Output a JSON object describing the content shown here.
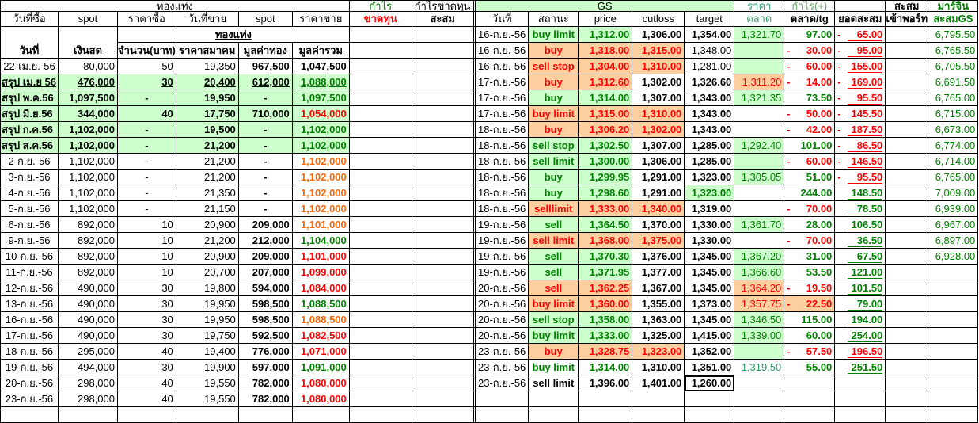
{
  "colors": {
    "green": "#008000",
    "red": "#ff0000",
    "orange": "#ff6600",
    "light_green_bg": "#ccffcc",
    "orange_bg": "#ffcc99"
  },
  "left": {
    "header": {
      "group": "ทองแท่ง",
      "profit": "กำไร",
      "profit_loss": "กำไรขาดทุน",
      "buy_date": "วันที่ซื้อ",
      "spot1": "spot",
      "buy_price": "ราคาซื้อ",
      "sell_date": "วันที่ขาย",
      "spot2": "spot",
      "sell_price": "ราคาขาย",
      "loss": "ขาดทุน",
      "cumulative": "สะสม",
      "date": "วันที่",
      "cash": "เงินสด",
      "gold_bar": "ทองแท่ง",
      "qty": "จำนวน(บาท)",
      "assoc_price": "ราคาสมาคม",
      "gold_value": "มูลค่าทอง",
      "total_value": "มูลค่ารวม"
    },
    "rows": [
      {
        "date": "22-เม.ย.-56",
        "cash": "80,000",
        "qty": "50",
        "price": "19,350",
        "gold": "967,500",
        "total": "1,047,500",
        "tc": "k",
        "sum": false
      },
      {
        "date": "สรุป เม.ย 56",
        "cash": "476,000",
        "qty": "30",
        "price": "20,400",
        "gold": "612,000",
        "total": "1,088,000",
        "tc": "g",
        "sum": true,
        "ul": true
      },
      {
        "date": "สรุป พ.ค.56",
        "cash": "1,097,500",
        "qty": "-",
        "price": "19,950",
        "gold": "-",
        "total": "1,097,500",
        "tc": "g",
        "sum": true
      },
      {
        "date": "สรุป มิ.ย.56",
        "cash": "344,000",
        "qty": "40",
        "price": "17,750",
        "gold": "710,000",
        "total": "1,054,000",
        "tc": "r",
        "sum": true
      },
      {
        "date": "สรุป ก.ค.56",
        "cash": "1,102,000",
        "qty": "-",
        "price": "19,500",
        "gold": "-",
        "total": "1,102,000",
        "tc": "g",
        "sum": true
      },
      {
        "date": "สรุป ส.ค.56",
        "cash": "1,102,000",
        "qty": "-",
        "price": "21,200",
        "gold": "-",
        "total": "1,102,000",
        "tc": "g",
        "sum": true
      },
      {
        "date": "2-ก.ย.-56",
        "cash": "1,102,000",
        "qty": "-",
        "price": "21,200",
        "gold": "-",
        "total": "1,102,000",
        "tc": "o"
      },
      {
        "date": "3-ก.ย.-56",
        "cash": "1,102,000",
        "qty": "-",
        "price": "21,200",
        "gold": "-",
        "total": "1,102,000",
        "tc": "o"
      },
      {
        "date": "4-ก.ย.-56",
        "cash": "1,102,000",
        "qty": "-",
        "price": "21,350",
        "gold": "-",
        "total": "1,102,000",
        "tc": "o"
      },
      {
        "date": "5-ก.ย.-56",
        "cash": "1,102,000",
        "qty": "-",
        "price": "21,150",
        "gold": "-",
        "total": "1,102,000",
        "tc": "o"
      },
      {
        "date": "6-ก.ย.-56",
        "cash": "892,000",
        "qty": "10",
        "price": "20,900",
        "gold": "209,000",
        "total": "1,101,000",
        "tc": "o"
      },
      {
        "date": "9-ก.ย.-56",
        "cash": "892,000",
        "qty": "10",
        "price": "21,200",
        "gold": "212,000",
        "total": "1,104,000",
        "tc": "g"
      },
      {
        "date": "10-ก.ย.-56",
        "cash": "892,000",
        "qty": "10",
        "price": "20,900",
        "gold": "209,000",
        "total": "1,101,000",
        "tc": "r"
      },
      {
        "date": "11-ก.ย.-56",
        "cash": "892,000",
        "qty": "10",
        "price": "20,700",
        "gold": "207,000",
        "total": "1,099,000",
        "tc": "r"
      },
      {
        "date": "12-ก.ย.-56",
        "cash": "490,000",
        "qty": "30",
        "price": "19,800",
        "gold": "594,000",
        "total": "1,084,000",
        "tc": "r"
      },
      {
        "date": "13-ก.ย.-56",
        "cash": "490,000",
        "qty": "30",
        "price": "19,950",
        "gold": "598,500",
        "total": "1,088,500",
        "tc": "g"
      },
      {
        "date": "16-ก.ย.-56",
        "cash": "490,000",
        "qty": "30",
        "price": "19,950",
        "gold": "598,500",
        "total": "1,088,500",
        "tc": "o"
      },
      {
        "date": "17-ก.ย.-56",
        "cash": "490,000",
        "qty": "30",
        "price": "19,750",
        "gold": "592,500",
        "total": "1,082,500",
        "tc": "r"
      },
      {
        "date": "18-ก.ย.-56",
        "cash": "295,000",
        "qty": "40",
        "price": "19,400",
        "gold": "776,000",
        "total": "1,071,000",
        "tc": "r"
      },
      {
        "date": "19-ก.ย.-56",
        "cash": "494,000",
        "qty": "30",
        "price": "19,900",
        "gold": "597,000",
        "total": "1,091,000",
        "tc": "g"
      },
      {
        "date": "20-ก.ย.-56",
        "cash": "298,000",
        "qty": "40",
        "price": "19,550",
        "gold": "782,000",
        "total": "1,080,000",
        "tc": "r"
      },
      {
        "date": "23-ก.ย.-56",
        "cash": "298,000",
        "qty": "40",
        "price": "19,550",
        "gold": "782,000",
        "total": "1,080,000",
        "tc": "r"
      }
    ]
  },
  "right": {
    "header": {
      "group": "GS",
      "price_label": "ราคา",
      "profit_label": "กำไร(+)",
      "cumulative": "สะสม",
      "margin": "มาร์จิ้น",
      "date": "วันที่",
      "status": "สถานะ",
      "price": "price",
      "cutloss": "cutloss",
      "target": "target",
      "market": "ตลาด",
      "market_tg": "ตลาด/tg",
      "running_total": "ยอดสะสม",
      "port_in": "เข้าพอร์ท",
      "cum_gs": "สะสมGS"
    },
    "rows": [
      {
        "date": "16-ก.ย.-56",
        "status": "buy limit",
        "s": "g",
        "price": "1,312.00",
        "cutloss": "1,306.00",
        "cs": "n",
        "target": "1,354.00",
        "ts": "n",
        "market": "1,321.70",
        "ms": "g",
        "profit": "97.00",
        "pneg": false,
        "cum": "65.00",
        "cneg": true,
        "margin": "6,795.50"
      },
      {
        "date": "16-ก.ย.-56",
        "status": "buy",
        "s": "r",
        "price": "1,318.00",
        "cutloss": "1,315.00",
        "cs": "r",
        "target": "1,348.00",
        "ts": "l",
        "market": "",
        "ms": "g",
        "profit": "30.00",
        "pneg": true,
        "cum": "95.00",
        "cneg": true,
        "margin": "6,765.50"
      },
      {
        "date": "16-ก.ย.-56",
        "status": "sell stop",
        "s": "r",
        "price": "1,304.00",
        "cutloss": "1,310.00",
        "cs": "r",
        "target": "1,281.00",
        "ts": "l",
        "market": "",
        "ms": "g",
        "profit": "60.00",
        "pneg": true,
        "cum": "155.00",
        "cneg": true,
        "margin": "6,705.50"
      },
      {
        "date": "17-ก.ย.-56",
        "status": "buy",
        "s": "r",
        "price": "1,312.60",
        "cutloss": "1,302.00",
        "cs": "n",
        "target": "1,326.60",
        "ts": "n",
        "market": "1,311.20",
        "ms": "r",
        "profit": "14.00",
        "pneg": true,
        "cum": "169.00",
        "cneg": true,
        "margin": "6,691.50"
      },
      {
        "date": "17-ก.ย.-56",
        "status": "buy",
        "s": "g",
        "price": "1,314.00",
        "cutloss": "1,307.00",
        "cs": "n",
        "target": "1,343.00",
        "ts": "n",
        "market": "1,321.35",
        "ms": "g",
        "profit": "73.50",
        "pneg": false,
        "cum": "95.50",
        "cneg": true,
        "margin": "6,765.00"
      },
      {
        "date": "17-ก.ย.-56",
        "status": "buy limit",
        "s": "r",
        "price": "1,315.00",
        "cutloss": "1,310.00",
        "cs": "r",
        "target": "1,343.00",
        "ts": "n",
        "market": "",
        "ms": "w",
        "profit": "50.00",
        "pneg": true,
        "cum": "145.50",
        "cneg": true,
        "margin": "6,715.00"
      },
      {
        "date": "18-ก.ย.-56",
        "status": "buy",
        "s": "r",
        "price": "1,306.20",
        "cutloss": "1,302.00",
        "cs": "r",
        "target": "1,343.00",
        "ts": "n",
        "market": "",
        "ms": "w",
        "profit": "42.00",
        "pneg": true,
        "cum": "187.50",
        "cneg": true,
        "margin": "6,673.00"
      },
      {
        "date": "18-ก.ย.-56",
        "status": "sell stop",
        "s": "g",
        "price": "1,302.50",
        "cutloss": "1,307.00",
        "cs": "n",
        "target": "1,285.00",
        "ts": "n",
        "market": "1,292.40",
        "ms": "g",
        "profit": "101.00",
        "pneg": false,
        "cum": "86.50",
        "cneg": true,
        "margin": "6,774.00"
      },
      {
        "date": "18-ก.ย.-56",
        "status": "sell limit",
        "s": "g",
        "price": "1,300.00",
        "cutloss": "1,306.00",
        "cs": "n",
        "target": "1,285.00",
        "ts": "n",
        "market": "",
        "ms": "g",
        "profit": "60.00",
        "pneg": true,
        "cum": "146.50",
        "cneg": true,
        "margin": "6,714.00"
      },
      {
        "date": "18-ก.ย.-56",
        "status": "buy",
        "s": "g",
        "price": "1,299.95",
        "cutloss": "1,291.00",
        "cs": "n",
        "target": "1,323.00",
        "ts": "n",
        "market": "1,305.05",
        "ms": "g",
        "profit": "51.00",
        "pneg": false,
        "cum": "95.50",
        "cneg": true,
        "margin": "6,765.00"
      },
      {
        "date": "18-ก.ย.-56",
        "status": "buy",
        "s": "g",
        "price": "1,298.60",
        "cutloss": "1,291.00",
        "cs": "n",
        "target": "1,323.00",
        "ts": "g",
        "market": "",
        "ms": "w",
        "profit": "244.00",
        "pneg": false,
        "cum": "148.50",
        "cneg": false,
        "margin": "7,009.00"
      },
      {
        "date": "18-ก.ย.-56",
        "status": "selllimit",
        "s": "r",
        "price": "1,333.00",
        "cutloss": "1,340.00",
        "cs": "r",
        "target": "1,319.00",
        "ts": "n",
        "market": "",
        "ms": "w",
        "profit": "70.00",
        "pneg": true,
        "cum": "78.50",
        "cneg": false,
        "margin": "6,939.00"
      },
      {
        "date": "19-ก.ย.-56",
        "status": "sell",
        "s": "g",
        "price": "1,364.50",
        "cutloss": "1,370.00",
        "cs": "n",
        "target": "1,330.00",
        "ts": "n",
        "market": "1,361.70",
        "ms": "g",
        "profit": "28.00",
        "pneg": false,
        "cum": "106.50",
        "cneg": false,
        "margin": "6,967.00"
      },
      {
        "date": "19-ก.ย.-56",
        "status": "sell limit",
        "s": "r",
        "price": "1,368.00",
        "cutloss": "1,375.00",
        "cs": "r",
        "target": "1,330.00",
        "ts": "n",
        "market": "",
        "ms": "w",
        "profit": "70.00",
        "pneg": true,
        "cum": "36.50",
        "cneg": false,
        "margin": "6,897.00"
      },
      {
        "date": "19-ก.ย.-56",
        "status": "sell",
        "s": "g",
        "price": "1,370.30",
        "cutloss": "1,376.00",
        "cs": "n",
        "target": "1,345.00",
        "ts": "n",
        "market": "1,367.20",
        "ms": "g",
        "profit": "31.00",
        "pneg": false,
        "cum": "67.50",
        "cneg": false,
        "margin": "6,928.00"
      },
      {
        "date": "19-ก.ย.-56",
        "status": "sell",
        "s": "g",
        "price": "1,371.95",
        "cutloss": "1,377.00",
        "cs": "n",
        "target": "1,345.00",
        "ts": "n",
        "market": "1,366.60",
        "ms": "g",
        "profit": "53.50",
        "pneg": false,
        "cum": "121.00",
        "cneg": false,
        "margin": ""
      },
      {
        "date": "20-ก.ย.-56",
        "status": "sell",
        "s": "r",
        "price": "1,362.25",
        "cutloss": "1,367.00",
        "cs": "n",
        "target": "1,345.00",
        "ts": "n",
        "market": "1,364.20",
        "ms": "r",
        "profit": "19.50",
        "pneg": true,
        "cum": "101.50",
        "cneg": false,
        "margin": ""
      },
      {
        "date": "20-ก.ย.-56",
        "status": "buy limit",
        "s": "r",
        "price": "1,360.00",
        "cutloss": "1,355.00",
        "cs": "n",
        "target": "1,373.00",
        "ts": "n",
        "market": "1,357.75",
        "ms": "r",
        "profit": "22.50",
        "pneg": true,
        "pbg": true,
        "cum": "79.00",
        "cneg": false,
        "margin": ""
      },
      {
        "date": "20-ก.ย.-56",
        "status": "sell stop",
        "s": "g",
        "price": "1,358.00",
        "cutloss": "1,363.00",
        "cs": "n",
        "target": "1,345.00",
        "ts": "n",
        "market": "1,346.50",
        "ms": "g",
        "profit": "115.00",
        "pneg": false,
        "cum": "194.00",
        "cneg": false,
        "margin": ""
      },
      {
        "date": "20-ก.ย.-56",
        "status": "buy limit",
        "s": "g",
        "price": "1,333.00",
        "cutloss": "1,325.00",
        "cs": "n",
        "target": "1,415.00",
        "ts": "n",
        "market": "1,339.00",
        "ms": "g",
        "profit": "60.00",
        "pneg": false,
        "cum": "254.00",
        "cneg": false,
        "margin": ""
      },
      {
        "date": "23-ก.ย.-56",
        "status": "buy",
        "s": "r",
        "price": "1,328.75",
        "cutloss": "1,323.00",
        "cs": "r",
        "target": "1,352.00",
        "ts": "n",
        "market": "",
        "ms": "g",
        "profit": "57.50",
        "pneg": true,
        "cum": "196.50",
        "cneg": false,
        "cred": true,
        "margin": ""
      },
      {
        "date": "23-ก.ย.-56",
        "status": "buy limit",
        "s": "t",
        "price": "1,314.00",
        "cutloss": "1,310.00",
        "cs": "n",
        "target": "1,351.00",
        "ts": "n",
        "market": "1,319.50",
        "ms": "t",
        "profit": "55.00",
        "pneg": false,
        "cum": "251.50",
        "cneg": false,
        "margin": ""
      },
      {
        "date": "23-ก.ย.-56",
        "status": "sell limit",
        "s": "n",
        "price": "1,396.00",
        "cutloss": "1,401.00",
        "cs": "n",
        "target": "1,260.00",
        "ts": "sel",
        "market": "",
        "ms": "w",
        "profit": "",
        "pneg": false,
        "cum": "",
        "cneg": false,
        "margin": ""
      }
    ]
  }
}
